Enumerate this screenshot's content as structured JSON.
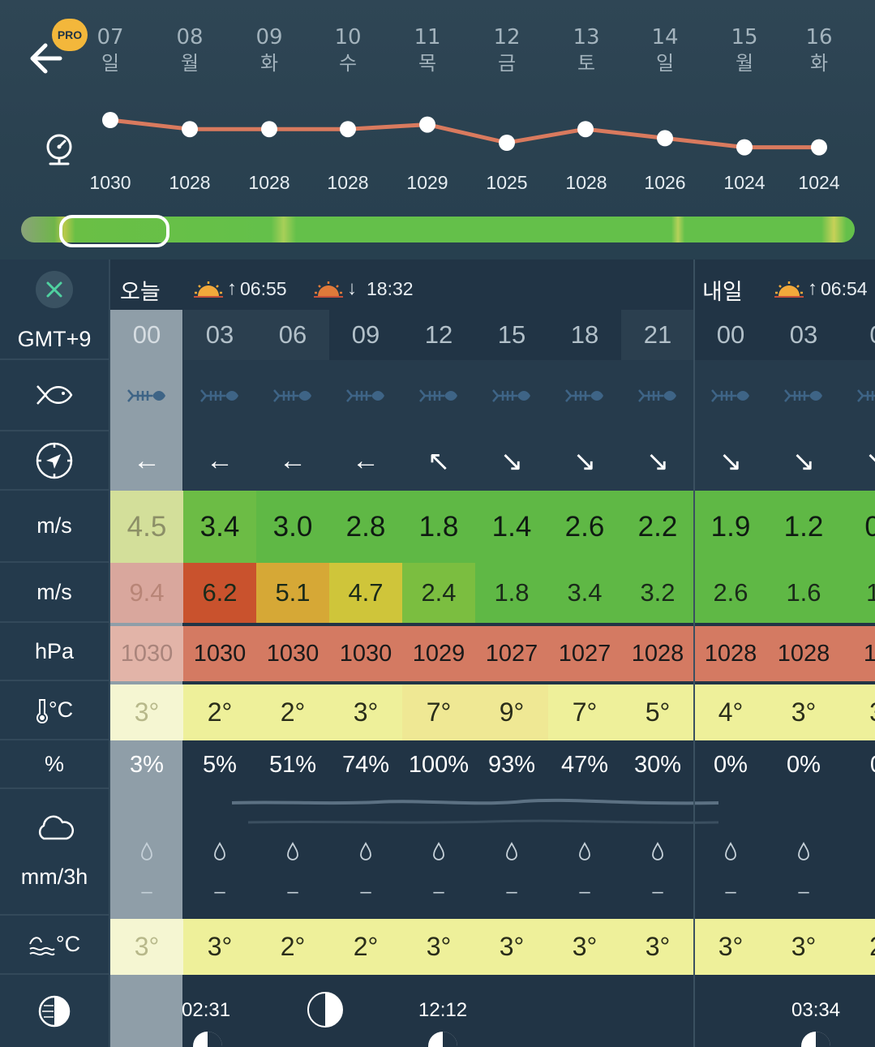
{
  "header": {
    "pro_badge": "PRO",
    "days": [
      {
        "num": "07",
        "wd": "일"
      },
      {
        "num": "08",
        "wd": "월"
      },
      {
        "num": "09",
        "wd": "화"
      },
      {
        "num": "10",
        "wd": "수"
      },
      {
        "num": "11",
        "wd": "목"
      },
      {
        "num": "12",
        "wd": "금"
      },
      {
        "num": "13",
        "wd": "토"
      },
      {
        "num": "14",
        "wd": "일"
      },
      {
        "num": "15",
        "wd": "월"
      },
      {
        "num": "16",
        "wd": "화"
      }
    ],
    "pressure_values": [
      "1030",
      "1028",
      "1028",
      "1028",
      "1029",
      "1025",
      "1028",
      "1026",
      "1024",
      "1024"
    ],
    "line_color": "#d97a5e"
  },
  "labels": {
    "timezone": "GMT+9",
    "wind_unit": "m/s",
    "gust_unit": "m/s",
    "pressure_unit": "hPa",
    "temp_unit": "°C",
    "humidity_unit": "%",
    "precip_unit": "mm/3h",
    "water_temp_unit": "°C"
  },
  "day_headers": {
    "today": "오늘",
    "today_sunrise": "06:55",
    "today_sunset": "18:32",
    "tomorrow": "내일",
    "tomorrow_sunrise": "06:54"
  },
  "hours": [
    "00",
    "03",
    "06",
    "09",
    "12",
    "15",
    "18",
    "21",
    "00",
    "03",
    "0"
  ],
  "wind_dirs": [
    "←",
    "←",
    "←",
    "←",
    "↖",
    "↘",
    "↘",
    "↘",
    "↘",
    "↘",
    "↘"
  ],
  "wind": [
    "4.5",
    "3.4",
    "3.0",
    "2.8",
    "1.8",
    "1.4",
    "2.6",
    "2.2",
    "1.9",
    "1.2",
    "0."
  ],
  "gust": [
    "9.4",
    "6.2",
    "5.1",
    "4.7",
    "2.4",
    "1.8",
    "3.4",
    "3.2",
    "2.6",
    "1.6",
    "1."
  ],
  "pressure": [
    "1030",
    "1030",
    "1030",
    "1030",
    "1029",
    "1027",
    "1027",
    "1028",
    "1028",
    "1028",
    "10"
  ],
  "temp": [
    "3°",
    "2°",
    "2°",
    "3°",
    "7°",
    "9°",
    "7°",
    "5°",
    "4°",
    "3°",
    "3"
  ],
  "humidity": [
    "3%",
    "5%",
    "51%",
    "74%",
    "100%",
    "93%",
    "47%",
    "30%",
    "0%",
    "0%",
    "0"
  ],
  "precip": [
    "–",
    "–",
    "–",
    "–",
    "–",
    "–",
    "–",
    "–",
    "–",
    "–",
    ""
  ],
  "water_temp": [
    "3°",
    "3°",
    "2°",
    "2°",
    "3°",
    "3°",
    "3°",
    "3°",
    "3°",
    "3°",
    "2"
  ],
  "moon_times": [
    "02:31",
    "12:12",
    "03:34"
  ],
  "colors": {
    "wind_green": "#5fb845",
    "gust_red": "#cf4e2c",
    "pressure_bg": "#d47a62",
    "temp_bg": "#eef09a"
  }
}
